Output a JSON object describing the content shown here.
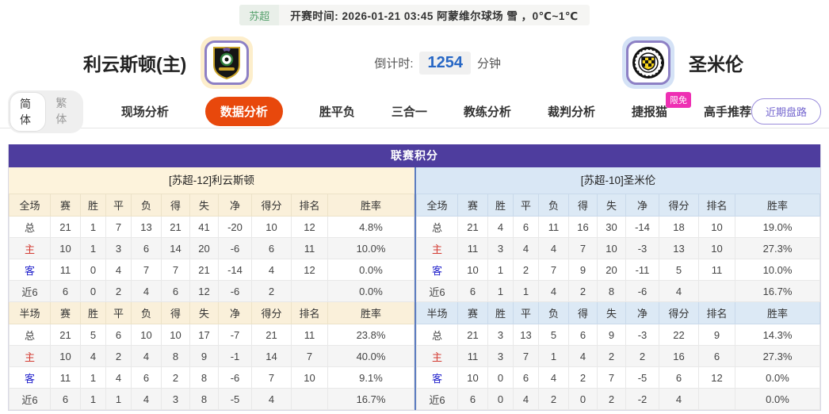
{
  "topbar": {
    "league": "苏超",
    "info": "开赛时间: 2026-01-21 03:45   阿蒙维尔球场  雪 ，0℃~1℃"
  },
  "teams": {
    "home": {
      "name": "利云斯顿(主)",
      "badge": "livingston-crest"
    },
    "away": {
      "name": "圣米伦",
      "badge": "st-mirren-crest"
    }
  },
  "countdown": {
    "label": "倒计时:",
    "value": "1254",
    "unit": "分钟"
  },
  "nav": {
    "lang": {
      "simplified": "简体",
      "traditional": "繁体"
    },
    "tabs": [
      {
        "label": "现场分析",
        "active": false
      },
      {
        "label": "数据分析",
        "active": true
      },
      {
        "label": "胜平负",
        "active": false
      },
      {
        "label": "三合一",
        "active": false
      },
      {
        "label": "教练分析",
        "active": false
      },
      {
        "label": "裁判分析",
        "active": false
      },
      {
        "label": "捷报猫",
        "active": false,
        "badge": "限免"
      },
      {
        "label": "高手推荐",
        "active": false
      }
    ],
    "right_button": "近期盘路"
  },
  "league_table": {
    "title": "联赛积分",
    "columns": [
      "赛",
      "胜",
      "平",
      "负",
      "得",
      "失",
      "净",
      "得分",
      "排名",
      "胜率"
    ],
    "sides": [
      {
        "team_header": "[苏超-12]利云斯顿",
        "theme": "home",
        "sections": [
          {
            "scope": "全场",
            "rows": [
              {
                "label": "总",
                "values": [
                  "21",
                  "1",
                  "7",
                  "13",
                  "21",
                  "41",
                  "-20",
                  "10",
                  "12",
                  "4.8%"
                ]
              },
              {
                "label": "主",
                "values": [
                  "10",
                  "1",
                  "3",
                  "6",
                  "14",
                  "20",
                  "-6",
                  "6",
                  "11",
                  "10.0%"
                ]
              },
              {
                "label": "客",
                "values": [
                  "11",
                  "0",
                  "4",
                  "7",
                  "7",
                  "21",
                  "-14",
                  "4",
                  "12",
                  "0.0%"
                ]
              },
              {
                "label": "近6",
                "values": [
                  "6",
                  "0",
                  "2",
                  "4",
                  "6",
                  "12",
                  "-6",
                  "2",
                  "",
                  "0.0%"
                ]
              }
            ]
          },
          {
            "scope": "半场",
            "rows": [
              {
                "label": "总",
                "values": [
                  "21",
                  "5",
                  "6",
                  "10",
                  "10",
                  "17",
                  "-7",
                  "21",
                  "11",
                  "23.8%"
                ]
              },
              {
                "label": "主",
                "values": [
                  "10",
                  "4",
                  "2",
                  "4",
                  "8",
                  "9",
                  "-1",
                  "14",
                  "7",
                  "40.0%"
                ]
              },
              {
                "label": "客",
                "values": [
                  "11",
                  "1",
                  "4",
                  "6",
                  "2",
                  "8",
                  "-6",
                  "7",
                  "10",
                  "9.1%"
                ]
              },
              {
                "label": "近6",
                "values": [
                  "6",
                  "1",
                  "1",
                  "4",
                  "3",
                  "8",
                  "-5",
                  "4",
                  "",
                  "16.7%"
                ]
              }
            ]
          }
        ]
      },
      {
        "team_header": "[苏超-10]圣米伦",
        "theme": "away",
        "sections": [
          {
            "scope": "全场",
            "rows": [
              {
                "label": "总",
                "values": [
                  "21",
                  "4",
                  "6",
                  "11",
                  "16",
                  "30",
                  "-14",
                  "18",
                  "10",
                  "19.0%"
                ]
              },
              {
                "label": "主",
                "values": [
                  "11",
                  "3",
                  "4",
                  "4",
                  "7",
                  "10",
                  "-3",
                  "13",
                  "10",
                  "27.3%"
                ]
              },
              {
                "label": "客",
                "values": [
                  "10",
                  "1",
                  "2",
                  "7",
                  "9",
                  "20",
                  "-11",
                  "5",
                  "11",
                  "10.0%"
                ]
              },
              {
                "label": "近6",
                "values": [
                  "6",
                  "1",
                  "1",
                  "4",
                  "2",
                  "8",
                  "-6",
                  "4",
                  "",
                  "16.7%"
                ]
              }
            ]
          },
          {
            "scope": "半场",
            "rows": [
              {
                "label": "总",
                "values": [
                  "21",
                  "3",
                  "13",
                  "5",
                  "6",
                  "9",
                  "-3",
                  "22",
                  "9",
                  "14.3%"
                ]
              },
              {
                "label": "主",
                "values": [
                  "11",
                  "3",
                  "7",
                  "1",
                  "4",
                  "2",
                  "2",
                  "16",
                  "6",
                  "27.3%"
                ]
              },
              {
                "label": "客",
                "values": [
                  "10",
                  "0",
                  "6",
                  "4",
                  "2",
                  "7",
                  "-5",
                  "6",
                  "12",
                  "0.0%"
                ]
              },
              {
                "label": "近6",
                "values": [
                  "6",
                  "0",
                  "4",
                  "2",
                  "0",
                  "2",
                  "-2",
                  "4",
                  "",
                  "0.0%"
                ]
              }
            ]
          }
        ]
      }
    ]
  },
  "colors": {
    "accent_purple": "#4e3d9e",
    "active_tab_orange": "#e8480c",
    "badge_pink": "#ee2fb3",
    "countdown_blue": "#2767c5",
    "home_panel_bg": "#fdf3dc",
    "away_panel_bg": "#d9e7f5",
    "home_row_label_red": "#d43c33",
    "away_row_label_blue": "#2323cc"
  }
}
